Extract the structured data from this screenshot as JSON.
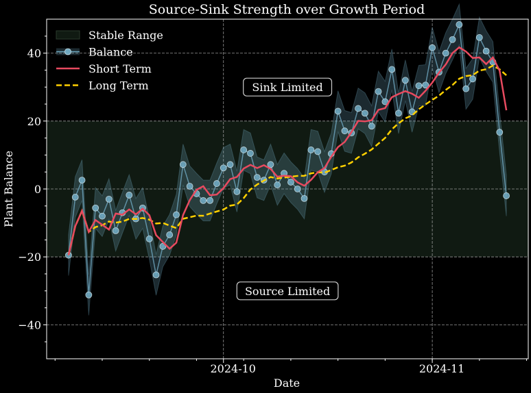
{
  "chart_data": {
    "type": "line",
    "title": "Source-Sink Strength over Growth Period",
    "xlabel": "Date",
    "ylabel": "Plant Balance",
    "xlim": [
      "2024-09-04T18:00",
      "2024-11-15T06:00"
    ],
    "ylim": [
      -50,
      50
    ],
    "x_ticks": [
      {
        "date": "2024-10-01",
        "label": "2024-10"
      },
      {
        "date": "2024-11-01",
        "label": "2024-11"
      }
    ],
    "y_ticks": [
      -40,
      -20,
      0,
      20,
      40
    ],
    "y_tick_labels": [
      "−40",
      "−20",
      "0",
      "20",
      "40"
    ],
    "grid": true,
    "legend_position": "top-left",
    "start_date": "2024-09-08",
    "stable_range": {
      "name": "Stable Range",
      "low": -20,
      "high": 20,
      "color": "#101a12"
    },
    "balance": {
      "name": "Balance",
      "color": "#6fa8c0",
      "band_halfwidth": 6,
      "values": [
        -19.5,
        -2.4,
        2.6,
        -31.2,
        -5.6,
        -8.0,
        -3.0,
        -12.3,
        -7.0,
        -1.8,
        -8.8,
        -5.6,
        -14.7,
        -25.3,
        -16.9,
        -13.5,
        -7.6,
        7.2,
        0.8,
        -1.4,
        -3.4,
        -3.4,
        1.6,
        6.2,
        7.2,
        -0.8,
        11.5,
        10.5,
        3.4,
        2.6,
        7.2,
        1.2,
        4.6,
        2.0,
        0.0,
        -2.8,
        11.5,
        11.0,
        5.0,
        10.4,
        22.9,
        17.1,
        16.5,
        23.7,
        22.3,
        18.5,
        28.7,
        25.7,
        35.2,
        22.3,
        32.0,
        22.7,
        30.4,
        30.6,
        41.6,
        34.4,
        40.0,
        44.0,
        48.4,
        29.5,
        32.4,
        44.6,
        40.6,
        37.4,
        16.7,
        -2.0
      ]
    },
    "short_term": {
      "name": "Short Term",
      "window": 4,
      "color": "#e84a5f"
    },
    "long_term": {
      "name": "Long Term",
      "window": 14,
      "color": "#ffd000"
    },
    "annotations": [
      {
        "text": "Sink Limited",
        "date": "2024-10-10",
        "y": 30
      },
      {
        "text": "Source Limited",
        "date": "2024-10-10",
        "y": -30
      }
    ]
  }
}
